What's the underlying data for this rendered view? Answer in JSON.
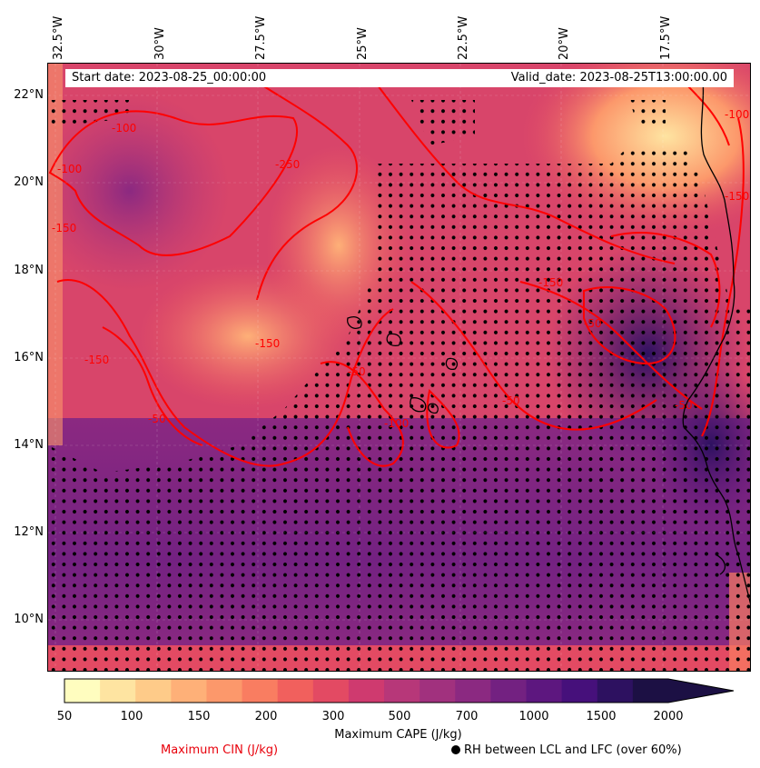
{
  "map": {
    "start_date": "Start date: 2023-08-25_00:00:00",
    "valid_date": "Valid_date: 2023-08-25T13:00:00.00",
    "lon_labels": [
      "32.5°W",
      "30°W",
      "27.5°W",
      "25°W",
      "22.5°W",
      "20°W",
      "17.5°W"
    ],
    "lat_labels": [
      "22°N",
      "20°N",
      "18°N",
      "16°N",
      "14°N",
      "12°N",
      "10°N"
    ],
    "contour_labels": [
      "-100",
      "-100",
      "-150",
      "-250",
      "-150",
      "-50",
      "-150",
      "-50",
      "-150",
      "-50",
      "-50",
      "-100",
      "-150",
      "-50",
      "-100"
    ],
    "colors": {
      "cin_contour": "#ff0000",
      "coastline": "#000000",
      "dots": "#000000"
    }
  },
  "colorbar": {
    "ticks": [
      "50",
      "100",
      "150",
      "200",
      "300",
      "500",
      "700",
      "1000",
      "1500",
      "2000"
    ],
    "label": "Maximum CAPE (J/kg)",
    "colors": [
      "#fffdbf",
      "#fee4a1",
      "#fecb89",
      "#feb078",
      "#fc986b",
      "#f97d61",
      "#f1605d",
      "#e34a63",
      "#cf3a6f",
      "#b73779",
      "#a1317e",
      "#8b2981",
      "#732181",
      "#5d177f",
      "#46107b",
      "#2d1160",
      "#1c1044"
    ],
    "extend_color": "#1c1044"
  },
  "legend": {
    "cin": "Maximum CIN (J/kg)",
    "rh": "RH between LCL and LFC (over 60%)"
  }
}
